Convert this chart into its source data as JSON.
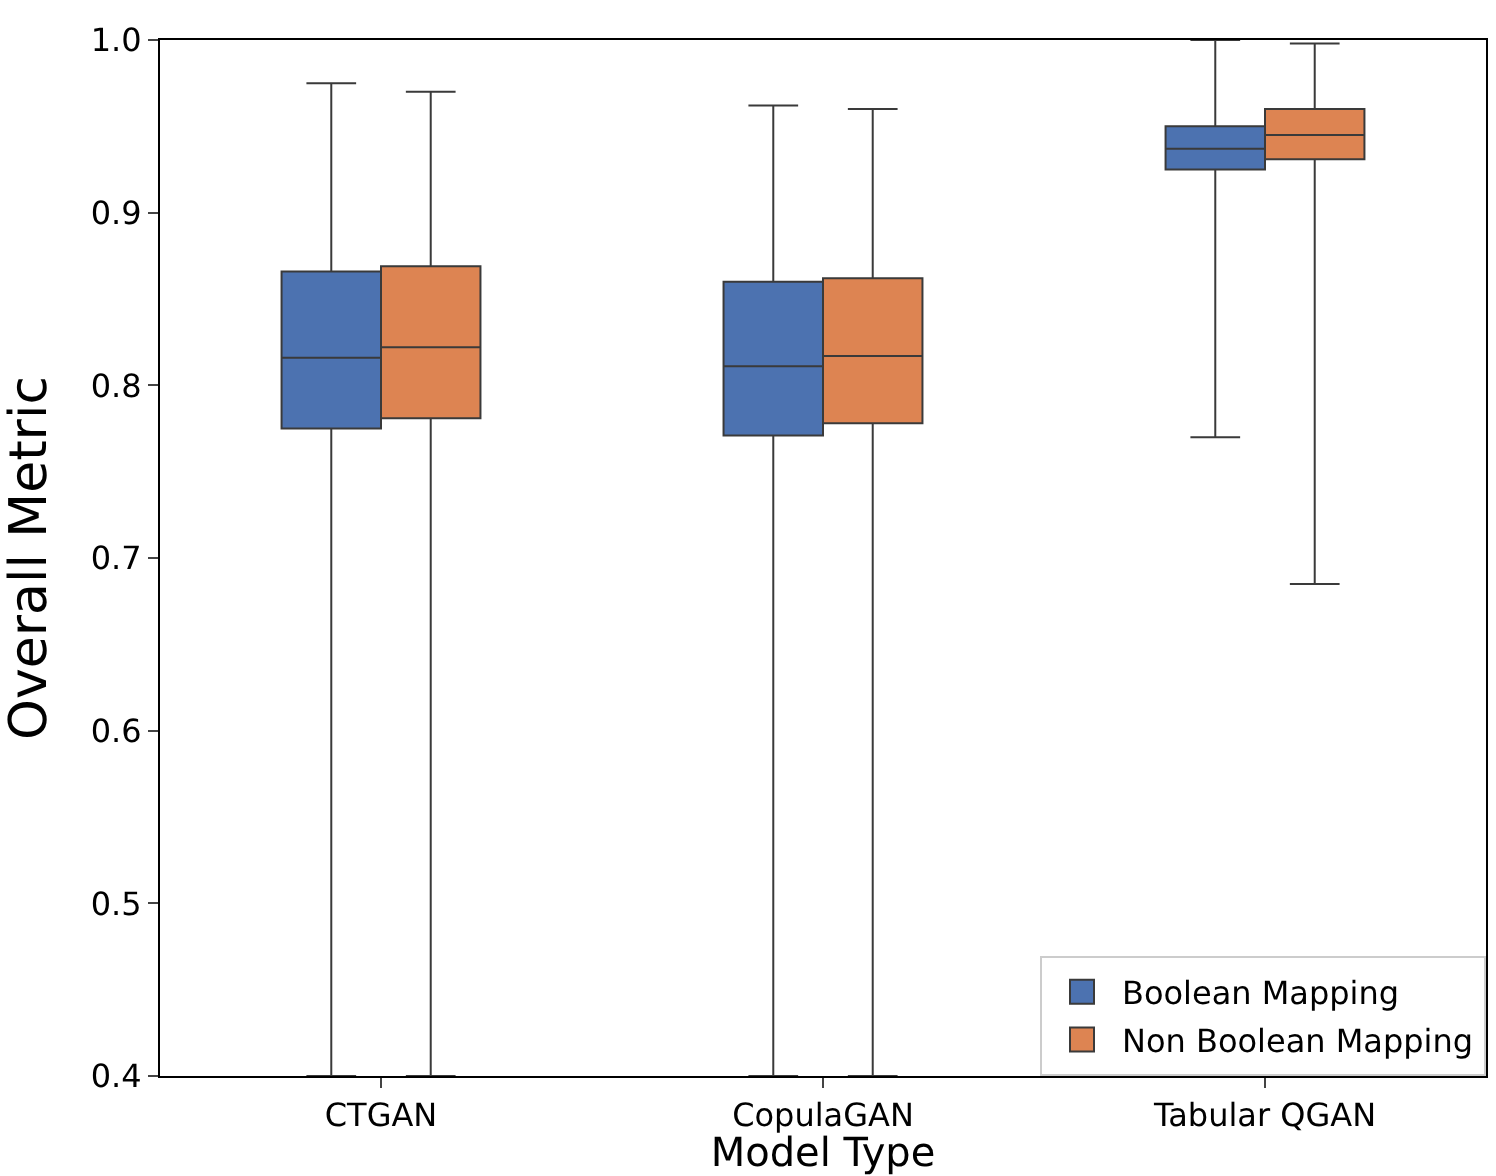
{
  "chart_data": {
    "type": "box",
    "xlabel": "Model Type",
    "ylabel": "Overall Metric",
    "categories": [
      "CTGAN",
      "CopulaGAN",
      "Tabular QGAN"
    ],
    "ylim": [
      0.4,
      1.0
    ],
    "yticks": [
      {
        "value": 0.4,
        "label": "0.4"
      },
      {
        "value": 0.5,
        "label": "0.5"
      },
      {
        "value": 0.6,
        "label": "0.6"
      },
      {
        "value": 0.7,
        "label": "0.7"
      },
      {
        "value": 0.8,
        "label": "0.8"
      },
      {
        "value": 0.9,
        "label": "0.9"
      },
      {
        "value": 1.0,
        "label": "1.0"
      }
    ],
    "grid": false,
    "legend": "bottom right",
    "series": [
      {
        "name": "Boolean Mapping",
        "color": "#4c72b0",
        "boxes": [
          {
            "low": 0.4,
            "q1": 0.775,
            "median": 0.816,
            "q3": 0.866,
            "high": 0.975
          },
          {
            "low": 0.4,
            "q1": 0.771,
            "median": 0.811,
            "q3": 0.86,
            "high": 0.962
          },
          {
            "low": 0.77,
            "q1": 0.925,
            "median": 0.937,
            "q3": 0.95,
            "high": 1.0
          }
        ]
      },
      {
        "name": "Non Boolean Mapping",
        "color": "#dd8452",
        "boxes": [
          {
            "low": 0.4,
            "q1": 0.781,
            "median": 0.822,
            "q3": 0.869,
            "high": 0.97
          },
          {
            "low": 0.4,
            "q1": 0.778,
            "median": 0.817,
            "q3": 0.862,
            "high": 0.96
          },
          {
            "low": 0.685,
            "q1": 0.931,
            "median": 0.945,
            "q3": 0.96,
            "high": 0.998
          }
        ]
      }
    ]
  }
}
